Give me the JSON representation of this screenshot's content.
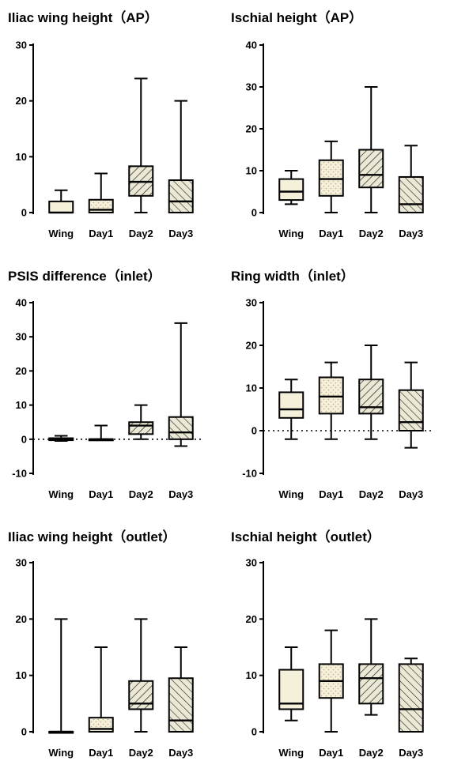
{
  "chart_data": [
    {
      "type": "box",
      "title": "Iliac wing height（AP）",
      "categories": [
        "Wing",
        "Day1",
        "Day2",
        "Day3"
      ],
      "ylim": [
        0,
        30
      ],
      "yticks": [
        0,
        10,
        20,
        30
      ],
      "zero_line": false,
      "boxes": [
        {
          "category": "Wing",
          "min": 0,
          "q1": 0,
          "median": 0,
          "q3": 2,
          "max": 4,
          "fill": "plain"
        },
        {
          "category": "Day1",
          "min": 0,
          "q1": 0,
          "median": 0.5,
          "q3": 2.3,
          "max": 7,
          "fill": "dotted"
        },
        {
          "category": "Day2",
          "min": 0,
          "q1": 3,
          "median": 5.5,
          "q3": 8.3,
          "max": 24,
          "fill": "hatched"
        },
        {
          "category": "Day3",
          "min": 0,
          "q1": 0,
          "median": 2,
          "q3": 5.8,
          "max": 20,
          "fill": "hatched-dense"
        }
      ]
    },
    {
      "type": "box",
      "title": "Ischial height（AP）",
      "categories": [
        "Wing",
        "Day1",
        "Day2",
        "Day3"
      ],
      "ylim": [
        0,
        40
      ],
      "yticks": [
        0,
        10,
        20,
        30,
        40
      ],
      "zero_line": false,
      "boxes": [
        {
          "category": "Wing",
          "min": 2,
          "q1": 3,
          "median": 5,
          "q3": 8,
          "max": 10,
          "fill": "plain"
        },
        {
          "category": "Day1",
          "min": 0,
          "q1": 4,
          "median": 8,
          "q3": 12.5,
          "max": 17,
          "fill": "dotted"
        },
        {
          "category": "Day2",
          "min": 0,
          "q1": 6,
          "median": 9,
          "q3": 15,
          "max": 30,
          "fill": "hatched"
        },
        {
          "category": "Day3",
          "min": 0,
          "q1": 0,
          "median": 2,
          "q3": 8.5,
          "max": 16,
          "fill": "hatched-dense"
        }
      ]
    },
    {
      "type": "box",
      "title": "PSIS difference（inlet）",
      "categories": [
        "Wing",
        "Day1",
        "Day2",
        "Day3"
      ],
      "ylim": [
        -10,
        40
      ],
      "yticks": [
        -10,
        0,
        10,
        20,
        30,
        40
      ],
      "zero_line": true,
      "boxes": [
        {
          "category": "Wing",
          "min": -0.5,
          "q1": -0.3,
          "median": 0,
          "q3": 0.3,
          "max": 1,
          "fill": "plain"
        },
        {
          "category": "Day1",
          "min": 0,
          "q1": 0,
          "median": 0,
          "q3": 0,
          "max": 4,
          "fill": "dotted"
        },
        {
          "category": "Day2",
          "min": 0,
          "q1": 1.5,
          "median": 4,
          "q3": 5,
          "max": 10,
          "fill": "hatched"
        },
        {
          "category": "Day3",
          "min": -2,
          "q1": 0,
          "median": 2,
          "q3": 6.5,
          "max": 34,
          "fill": "hatched-dense"
        }
      ]
    },
    {
      "type": "box",
      "title": "Ring width（inlet）",
      "categories": [
        "Wing",
        "Day1",
        "Day2",
        "Day3"
      ],
      "ylim": [
        -10,
        30
      ],
      "yticks": [
        -10,
        0,
        10,
        20,
        30
      ],
      "zero_line": true,
      "boxes": [
        {
          "category": "Wing",
          "min": -2,
          "q1": 3,
          "median": 5,
          "q3": 9,
          "max": 12,
          "fill": "plain"
        },
        {
          "category": "Day1",
          "min": -2,
          "q1": 4,
          "median": 8,
          "q3": 12.5,
          "max": 16,
          "fill": "dotted"
        },
        {
          "category": "Day2",
          "min": -2,
          "q1": 4,
          "median": 5.5,
          "q3": 12,
          "max": 20,
          "fill": "hatched"
        },
        {
          "category": "Day3",
          "min": -4,
          "q1": 0,
          "median": 2,
          "q3": 9.5,
          "max": 16,
          "fill": "hatched-dense"
        }
      ]
    },
    {
      "type": "box",
      "title": "Iliac wing height（outlet）",
      "categories": [
        "Wing",
        "Day1",
        "Day2",
        "Day3"
      ],
      "ylim": [
        0,
        30
      ],
      "yticks": [
        0,
        10,
        20,
        30
      ],
      "zero_line": false,
      "boxes": [
        {
          "category": "Wing",
          "min": 0,
          "q1": 0,
          "median": 0,
          "q3": 0,
          "max": 20,
          "fill": "plain"
        },
        {
          "category": "Day1",
          "min": 0,
          "q1": 0,
          "median": 0.5,
          "q3": 2.5,
          "max": 15,
          "fill": "dotted"
        },
        {
          "category": "Day2",
          "min": 0,
          "q1": 4,
          "median": 5,
          "q3": 9,
          "max": 20,
          "fill": "hatched"
        },
        {
          "category": "Day3",
          "min": 0,
          "q1": 0,
          "median": 2,
          "q3": 9.5,
          "max": 15,
          "fill": "hatched-dense"
        }
      ]
    },
    {
      "type": "box",
      "title": "Ischial height（outlet）",
      "categories": [
        "Wing",
        "Day1",
        "Day2",
        "Day3"
      ],
      "ylim": [
        0,
        30
      ],
      "yticks": [
        0,
        10,
        20,
        30
      ],
      "zero_line": false,
      "boxes": [
        {
          "category": "Wing",
          "min": 2,
          "q1": 4,
          "median": 5,
          "q3": 11,
          "max": 15,
          "fill": "plain"
        },
        {
          "category": "Day1",
          "min": 0,
          "q1": 6,
          "median": 9,
          "q3": 12,
          "max": 18,
          "fill": "dotted"
        },
        {
          "category": "Day2",
          "min": 3,
          "q1": 5,
          "median": 9.5,
          "q3": 12,
          "max": 20,
          "fill": "hatched"
        },
        {
          "category": "Day3",
          "min": 0,
          "q1": 0,
          "median": 4,
          "q3": 12,
          "max": 13,
          "fill": "hatched-dense"
        }
      ]
    }
  ],
  "colors": {
    "box_fill": "#f4f0d9",
    "stroke": "#000000",
    "dots": "#c9a98a"
  }
}
